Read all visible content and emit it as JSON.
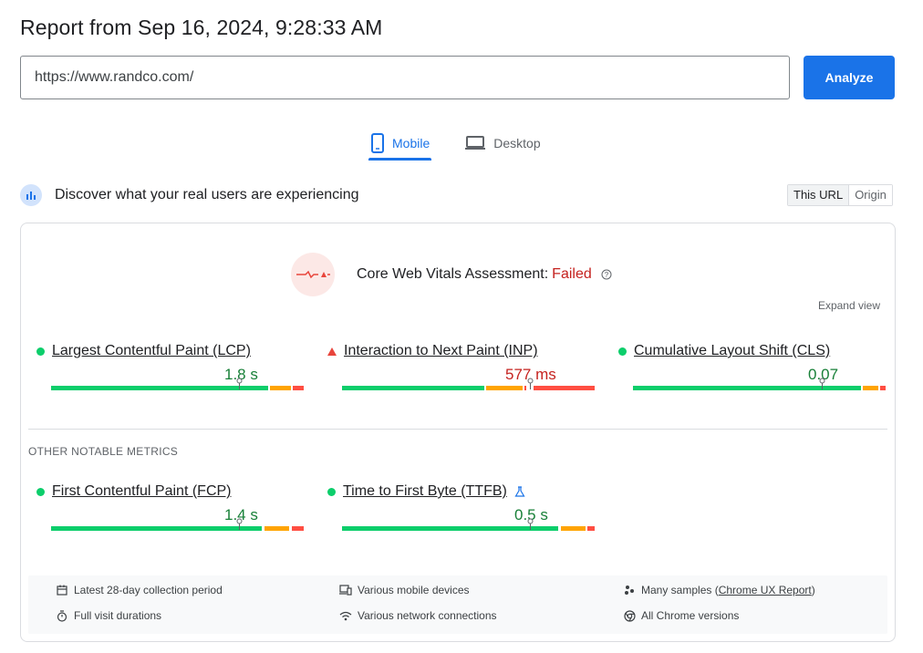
{
  "report": {
    "title": "Report from Sep 16, 2024, 9:28:33 AM"
  },
  "search": {
    "url": "https://www.randco.com/",
    "analyze_label": "Analyze"
  },
  "tabs": {
    "mobile": "Mobile",
    "desktop": "Desktop"
  },
  "discover": {
    "text": "Discover what your real users are experiencing",
    "this_url": "This URL",
    "origin": "Origin"
  },
  "assessment": {
    "label": "Core Web Vitals Assessment:",
    "status": "Failed",
    "expand": "Expand view"
  },
  "metrics": {
    "lcp": {
      "name": "Largest Contentful Paint (LCP)",
      "value": "1.8 s",
      "status": "good",
      "position": 0.75
    },
    "inp": {
      "name": "Interaction to Next Paint (INP)",
      "value": "577 ms",
      "status": "poor",
      "position": 0.75
    },
    "cls": {
      "name": "Cumulative Layout Shift (CLS)",
      "value": "0.07",
      "status": "good",
      "position": 0.75
    },
    "fcp": {
      "name": "First Contentful Paint (FCP)",
      "value": "1.4 s",
      "status": "good",
      "position": 0.75
    },
    "ttfb": {
      "name": "Time to First Byte (TTFB)",
      "value": "0.5 s",
      "status": "good",
      "position": 0.75
    }
  },
  "other": {
    "label": "OTHER NOTABLE METRICS"
  },
  "footer": {
    "period": "Latest 28-day collection period",
    "devices": "Various mobile devices",
    "samples_prefix": "Many samples (",
    "samples_link": "Chrome UX Report",
    "samples_suffix": ")",
    "durations": "Full visit durations",
    "network": "Various network connections",
    "chrome": "All Chrome versions"
  },
  "colors": {
    "accent": "#1a73e8",
    "good": "#0cce6b",
    "needs_improvement": "#ffa400",
    "poor": "#ff4e42",
    "failed_text": "#c5221f"
  }
}
